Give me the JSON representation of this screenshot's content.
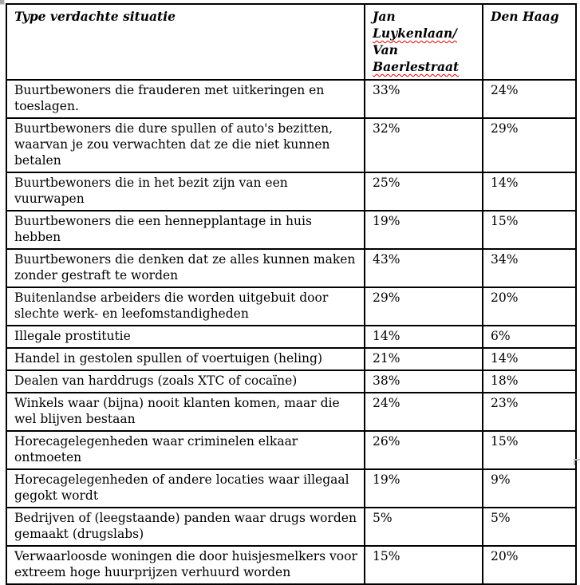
{
  "colors": {
    "background": "#ffffff",
    "text": "#000000",
    "table_border": "#000000",
    "spellcheck_underline": "#e00000",
    "corner_handle": "#a6a6a6"
  },
  "table": {
    "columns": [
      {
        "id": "situation",
        "label": "Type verdachte situatie"
      },
      {
        "id": "jan-luykenlaan",
        "label": "Jan Luykenlaan/ Van Baerlestraat",
        "lines": [
          {
            "text": "Jan",
            "misspelled": false
          },
          {
            "text": "Luykenlaan/",
            "misspelled": true
          },
          {
            "text": "Van",
            "misspelled": false
          },
          {
            "text": "Baerlestraat",
            "misspelled": true
          }
        ]
      },
      {
        "id": "den-haag",
        "label": "Den Haag"
      }
    ],
    "rows": [
      {
        "situation": "Buurtbewoners die frauderen met uitkeringen en toeslagen.",
        "jan_luykenlaan": "33%",
        "den_haag": "24%"
      },
      {
        "situation": "Buurtbewoners die dure spullen of auto's bezitten, waarvan je zou verwachten dat ze die niet kunnen betalen",
        "jan_luykenlaan": "32%",
        "den_haag": "29%"
      },
      {
        "situation": "Buurtbewoners die in het bezit zijn van een vuurwapen",
        "jan_luykenlaan": "25%",
        "den_haag": "14%"
      },
      {
        "situation": "Buurtbewoners die een hennepplantage in huis hebben",
        "jan_luykenlaan": "19%",
        "den_haag": "15%"
      },
      {
        "situation": "Buurtbewoners die denken dat ze alles kunnen maken zonder gestraft te worden",
        "jan_luykenlaan": "43%",
        "den_haag": "34%"
      },
      {
        "situation": "Buitenlandse arbeiders die worden uitgebuit door slechte werk- en leefomstandigheden",
        "jan_luykenlaan": "29%",
        "den_haag": "20%"
      },
      {
        "situation": "Illegale prostitutie",
        "jan_luykenlaan": "14%",
        "den_haag": "6%"
      },
      {
        "situation": "Handel in gestolen spullen of voertuigen (heling)",
        "jan_luykenlaan": "21%",
        "den_haag": "14%"
      },
      {
        "situation": "Dealen van harddrugs (zoals XTC of cocaïne)",
        "jan_luykenlaan": "38%",
        "den_haag": "18%"
      },
      {
        "situation": "Winkels waar (bijna) nooit klanten komen, maar die wel blijven bestaan",
        "jan_luykenlaan": "24%",
        "den_haag": "23%"
      },
      {
        "situation": "Horecagelegenheden waar criminelen elkaar ontmoeten",
        "jan_luykenlaan": "26%",
        "den_haag": "15%"
      },
      {
        "situation": "Horecagelegenheden of andere locaties waar illegaal gegokt wordt",
        "jan_luykenlaan": "19%",
        "den_haag": "9%"
      },
      {
        "situation": "Bedrijven of (leegstaande) panden waar drugs worden gemaakt (drugslabs)",
        "jan_luykenlaan": "5%",
        "den_haag": "5%"
      },
      {
        "situation": "Verwaarloosde woningen die door huisjesmelkers voor extreem hoge huurprijzen verhuurd worden",
        "jan_luykenlaan": "15%",
        "den_haag": "20%"
      }
    ]
  }
}
